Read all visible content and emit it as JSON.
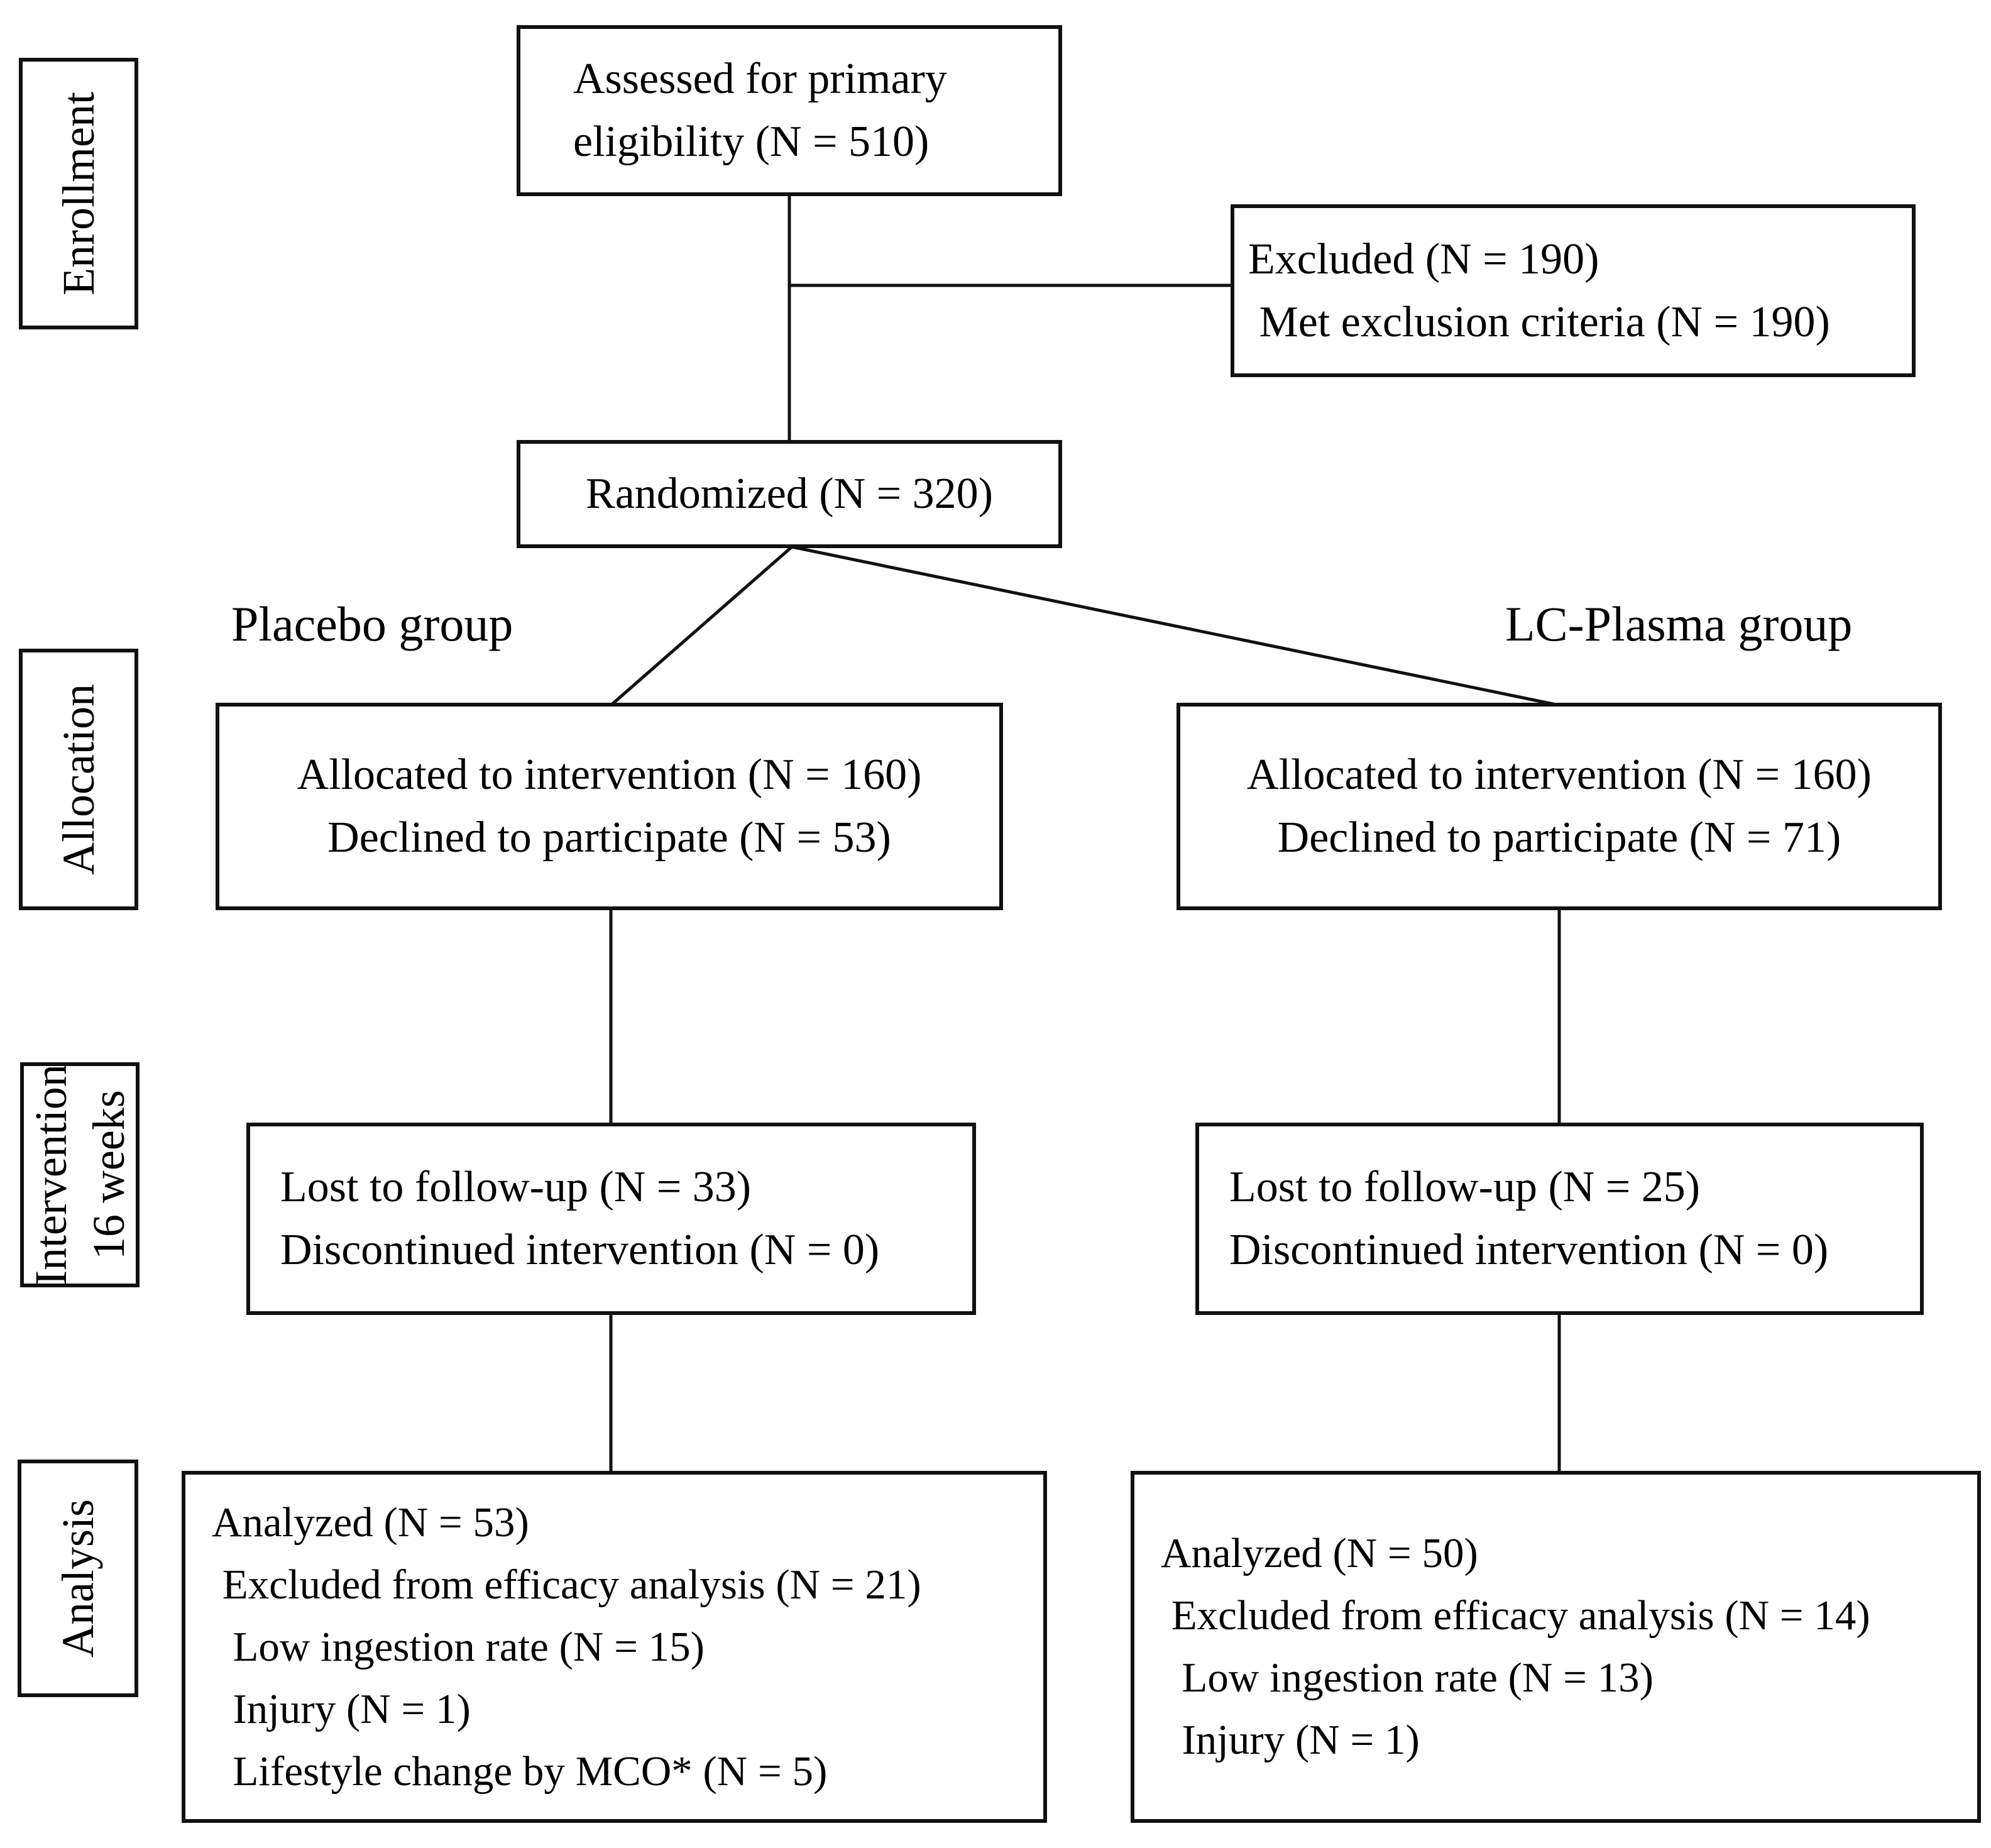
{
  "figure": {
    "colors": {
      "ink": "#111111",
      "paper": "#ffffff"
    },
    "rail": {
      "enrollment": {
        "lines": [
          "Enrollment"
        ]
      },
      "allocation": {
        "lines": [
          "Allocation"
        ]
      },
      "intervention": {
        "lines": [
          "Intervention",
          "16 weeks"
        ]
      },
      "analysis": {
        "lines": [
          "Analysis"
        ]
      }
    },
    "group_labels": {
      "left": "Placebo group",
      "right": "LC-Plasma group"
    },
    "boxes": {
      "assessed": {
        "lines": [
          "Assessed for primary",
          "eligibility (N = 510)"
        ]
      },
      "excluded": {
        "lines": [
          "Excluded (N = 190)",
          " Met exclusion criteria (N = 190)"
        ]
      },
      "randomized": {
        "lines": [
          "Randomized (N = 320)"
        ]
      },
      "allocation_left": {
        "lines": [
          "Allocated to intervention (N = 160)",
          "Declined to participate (N = 53)"
        ]
      },
      "allocation_right": {
        "lines": [
          "Allocated to intervention (N = 160)",
          "Declined to participate (N = 71)"
        ]
      },
      "intervention_left": {
        "lines": [
          "Lost to follow-up (N = 33)",
          "Discontinued intervention (N = 0)"
        ]
      },
      "intervention_right": {
        "lines": [
          "Lost to follow-up (N = 25)",
          "Discontinued intervention (N = 0)"
        ]
      },
      "analysis_left": {
        "lines": [
          "Analyzed (N = 53)",
          " Excluded from efficacy analysis (N = 21)",
          "  Low ingestion rate (N = 15)",
          "  Injury (N = 1)",
          "  Lifestyle change by MCO* (N = 5)"
        ]
      },
      "analysis_right": {
        "lines": [
          "Analyzed (N = 50)",
          " Excluded from efficacy analysis (N = 14)",
          "  Low ingestion rate (N = 13)",
          "  Injury (N = 1)"
        ]
      }
    }
  }
}
